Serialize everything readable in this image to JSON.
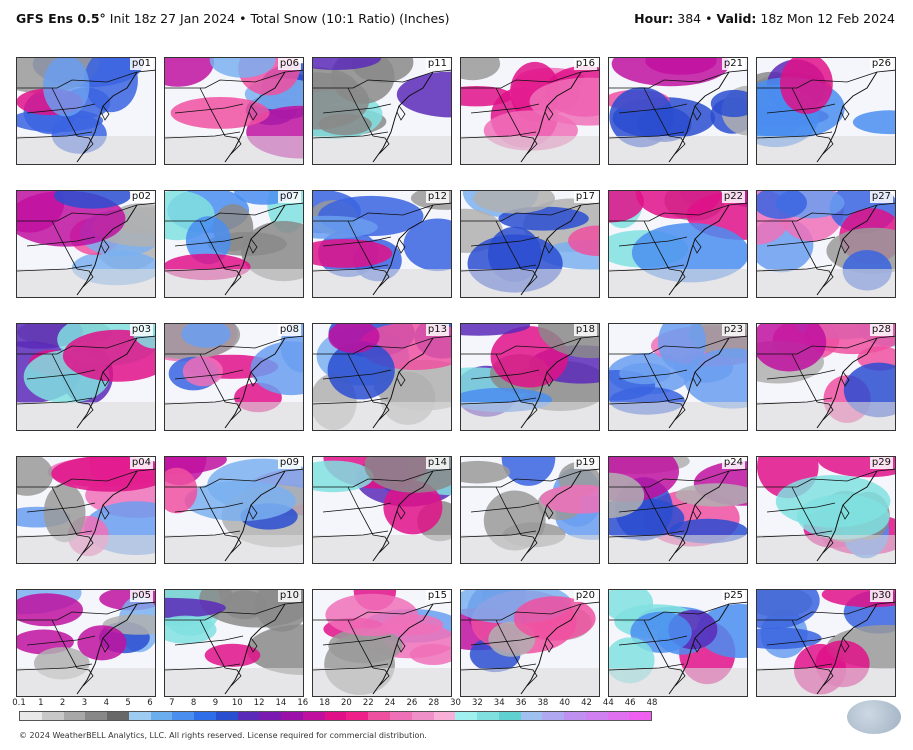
{
  "header": {
    "model": "GFS Ens 0.5°",
    "init": "Init 18z 27 Jan 2024",
    "sep": "•",
    "product": "Total Snow (10:1 Ratio) (Inches)",
    "hour_label": "Hour:",
    "hour": "384",
    "valid_label": "Valid:",
    "valid": "18z Mon 12 Feb 2024"
  },
  "panels": [
    [
      "p01",
      "p06",
      "p11",
      "p16",
      "p21",
      "p26"
    ],
    [
      "p02",
      "p07",
      "p12",
      "p17",
      "p22",
      "p27"
    ],
    [
      "p03",
      "p08",
      "p13",
      "p18",
      "p23",
      "p28"
    ],
    [
      "p04",
      "p09",
      "p14",
      "p19",
      "p24",
      "p29"
    ],
    [
      "p05",
      "p10",
      "p15",
      "p20",
      "p25",
      "p30"
    ]
  ],
  "colorbar": {
    "ticks": [
      "0.1",
      "1",
      "2",
      "3",
      "4",
      "5",
      "6",
      "7",
      "8",
      "9",
      "10",
      "12",
      "14",
      "16",
      "18",
      "20",
      "22",
      "24",
      "26",
      "28",
      "30",
      "32",
      "34",
      "36",
      "38",
      "40",
      "42",
      "44",
      "46",
      "48"
    ],
    "colors": [
      "#e8e8e8",
      "#c8c8c8",
      "#a8a8a8",
      "#888888",
      "#686868",
      "#9ecbf0",
      "#6aaef0",
      "#4a8ef0",
      "#2e6ee8",
      "#2a4ed0",
      "#5a2ab8",
      "#7a1ab0",
      "#9a10a8",
      "#c010a0",
      "#e01088",
      "#f0208a",
      "#f050a0",
      "#f070b8",
      "#f090c8",
      "#f8b0d8",
      "#a0f0f0",
      "#80e0e0",
      "#60d0d0",
      "#a0c0f0",
      "#b0a8f0",
      "#c090f0",
      "#d080f0",
      "#e070f0",
      "#f060f0"
    ]
  },
  "copyright": "© 2024 WeatherBELL Analytics, LLC. All rights reserved. License required for commercial distribution.",
  "logo": "weatherbell-logo"
}
